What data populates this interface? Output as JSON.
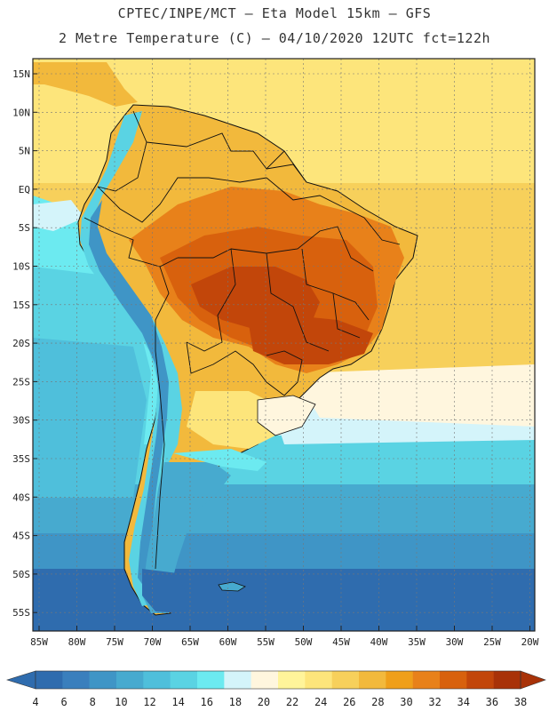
{
  "header": {
    "line1": "CPTEC/INPE/MCT –  Eta Model 15km – GFS",
    "line2": "2 Metre Temperature (C) – 04/10/2020 12UTC fct=122h"
  },
  "axes": {
    "lat_labels": [
      "15N",
      "10N",
      "5N",
      "EQ",
      "5S",
      "10S",
      "15S",
      "20S",
      "25S",
      "30S",
      "35S",
      "40S",
      "45S",
      "50S",
      "55S"
    ],
    "lon_labels": [
      "85W",
      "80W",
      "75W",
      "70W",
      "65W",
      "60W",
      "55W",
      "50W",
      "45W",
      "40W",
      "35W",
      "30W",
      "25W",
      "20W"
    ]
  },
  "colorbar": {
    "labels": [
      "4",
      "6",
      "8",
      "10",
      "12",
      "14",
      "16",
      "18",
      "20",
      "22",
      "24",
      "26",
      "28",
      "30",
      "32",
      "34",
      "36",
      "38"
    ],
    "colors": [
      "#2f6cae",
      "#3a7fbd",
      "#3f95c6",
      "#47aacf",
      "#4fbfdb",
      "#5ad3e3",
      "#6ceaf0",
      "#d4f4fa",
      "#fff6de",
      "#fff49a",
      "#fde57b",
      "#f7d05b",
      "#f2b93c",
      "#ef9f1a",
      "#e8811a",
      "#d8610d",
      "#c2460a",
      "#a83208"
    ]
  },
  "palette": {
    "ocean_cold": "#2f6cae",
    "ocean_mid": "#3f95c6",
    "ocean_cool": "#4fbfdb",
    "ocean_light": "#6ceaf0",
    "ocean_pale": "#d4f4fa",
    "ocean_warm": "#fde57b",
    "land_warm": "#f2b93c",
    "land_hot": "#e8811a",
    "land_hotter": "#d8610d",
    "land_hottest": "#c2460a",
    "andes_cold": "#5ad3e3"
  }
}
